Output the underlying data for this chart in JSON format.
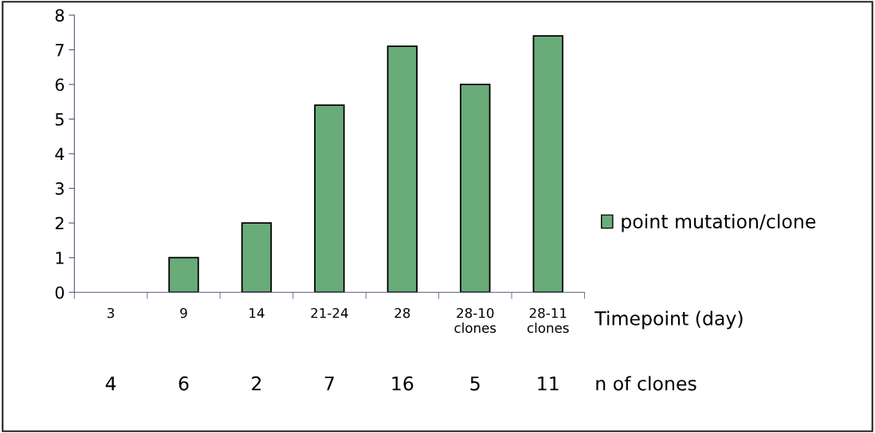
{
  "chart_data": {
    "type": "bar",
    "categories": [
      "3",
      "9",
      "14",
      "21-24",
      "28",
      "28-10\nclones",
      "28-11\nclones"
    ],
    "series": [
      {
        "name": "point mutation/clone",
        "color": "#6aab7a",
        "values": [
          null,
          1,
          2,
          5.4,
          7.1,
          6.0,
          7.4
        ]
      }
    ],
    "xlabel": "Timepoint (day)",
    "annotations": [
      "4",
      "6",
      "2",
      "7",
      "16",
      "5",
      "11",
      "n of clones"
    ],
    "ylim": [
      0,
      8
    ],
    "yticks": [
      0,
      1,
      2,
      3,
      4,
      5,
      6,
      7,
      8
    ],
    "grid": false,
    "legend": "right"
  }
}
